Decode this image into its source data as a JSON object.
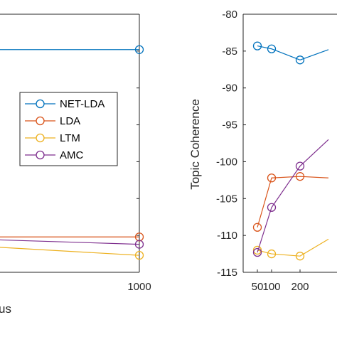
{
  "colors": {
    "NET-LDA": "#0072bd",
    "LDA": "#d95319",
    "LTM": "#edb120",
    "AMC": "#7e2f8e",
    "axis": "#262626"
  },
  "chart_data": [
    {
      "type": "line",
      "title": "",
      "xlabel_fragment": "us",
      "ylabel": "",
      "x_tick_labels": [
        "1000"
      ],
      "legend": {
        "placement": "center-right",
        "entries": [
          "NET-LDA",
          "LDA",
          "LTM",
          "AMC"
        ]
      },
      "marker": "circle-open",
      "series": [
        {
          "name": "NET-LDA",
          "x": [
            1000
          ],
          "y": [
            -84.8
          ]
        },
        {
          "name": "LDA",
          "x": [
            1000
          ],
          "y": [
            -110.2
          ]
        },
        {
          "name": "LTM",
          "x": [
            1000
          ],
          "y": [
            -112.7
          ]
        },
        {
          "name": "AMC",
          "x": [
            1000
          ],
          "y": [
            -111.2
          ]
        }
      ]
    },
    {
      "type": "line",
      "title": "",
      "xlabel": "",
      "ylabel": "Topic Coherence",
      "ylim": [
        -115,
        -80
      ],
      "y_ticks": [
        -80,
        -85,
        -90,
        -95,
        -100,
        -105,
        -110,
        -115
      ],
      "x_ticks": [
        50,
        100,
        200
      ],
      "x_tick_labels": [
        "50",
        "100",
        "200"
      ],
      "marker": "circle-open",
      "series": [
        {
          "name": "NET-LDA",
          "x": [
            50,
            100,
            200,
            300
          ],
          "y": [
            -84.3,
            -84.7,
            -86.2,
            -84.8
          ]
        },
        {
          "name": "LDA",
          "x": [
            50,
            100,
            200,
            300
          ],
          "y": [
            -108.9,
            -102.2,
            -102.0,
            -102.2
          ]
        },
        {
          "name": "LTM",
          "x": [
            50,
            100,
            200,
            300
          ],
          "y": [
            -112.0,
            -112.5,
            -112.8,
            -110.5
          ]
        },
        {
          "name": "AMC",
          "x": [
            50,
            100,
            200,
            300
          ],
          "y": [
            -112.3,
            -106.2,
            -100.6,
            -97.0
          ]
        }
      ]
    }
  ]
}
